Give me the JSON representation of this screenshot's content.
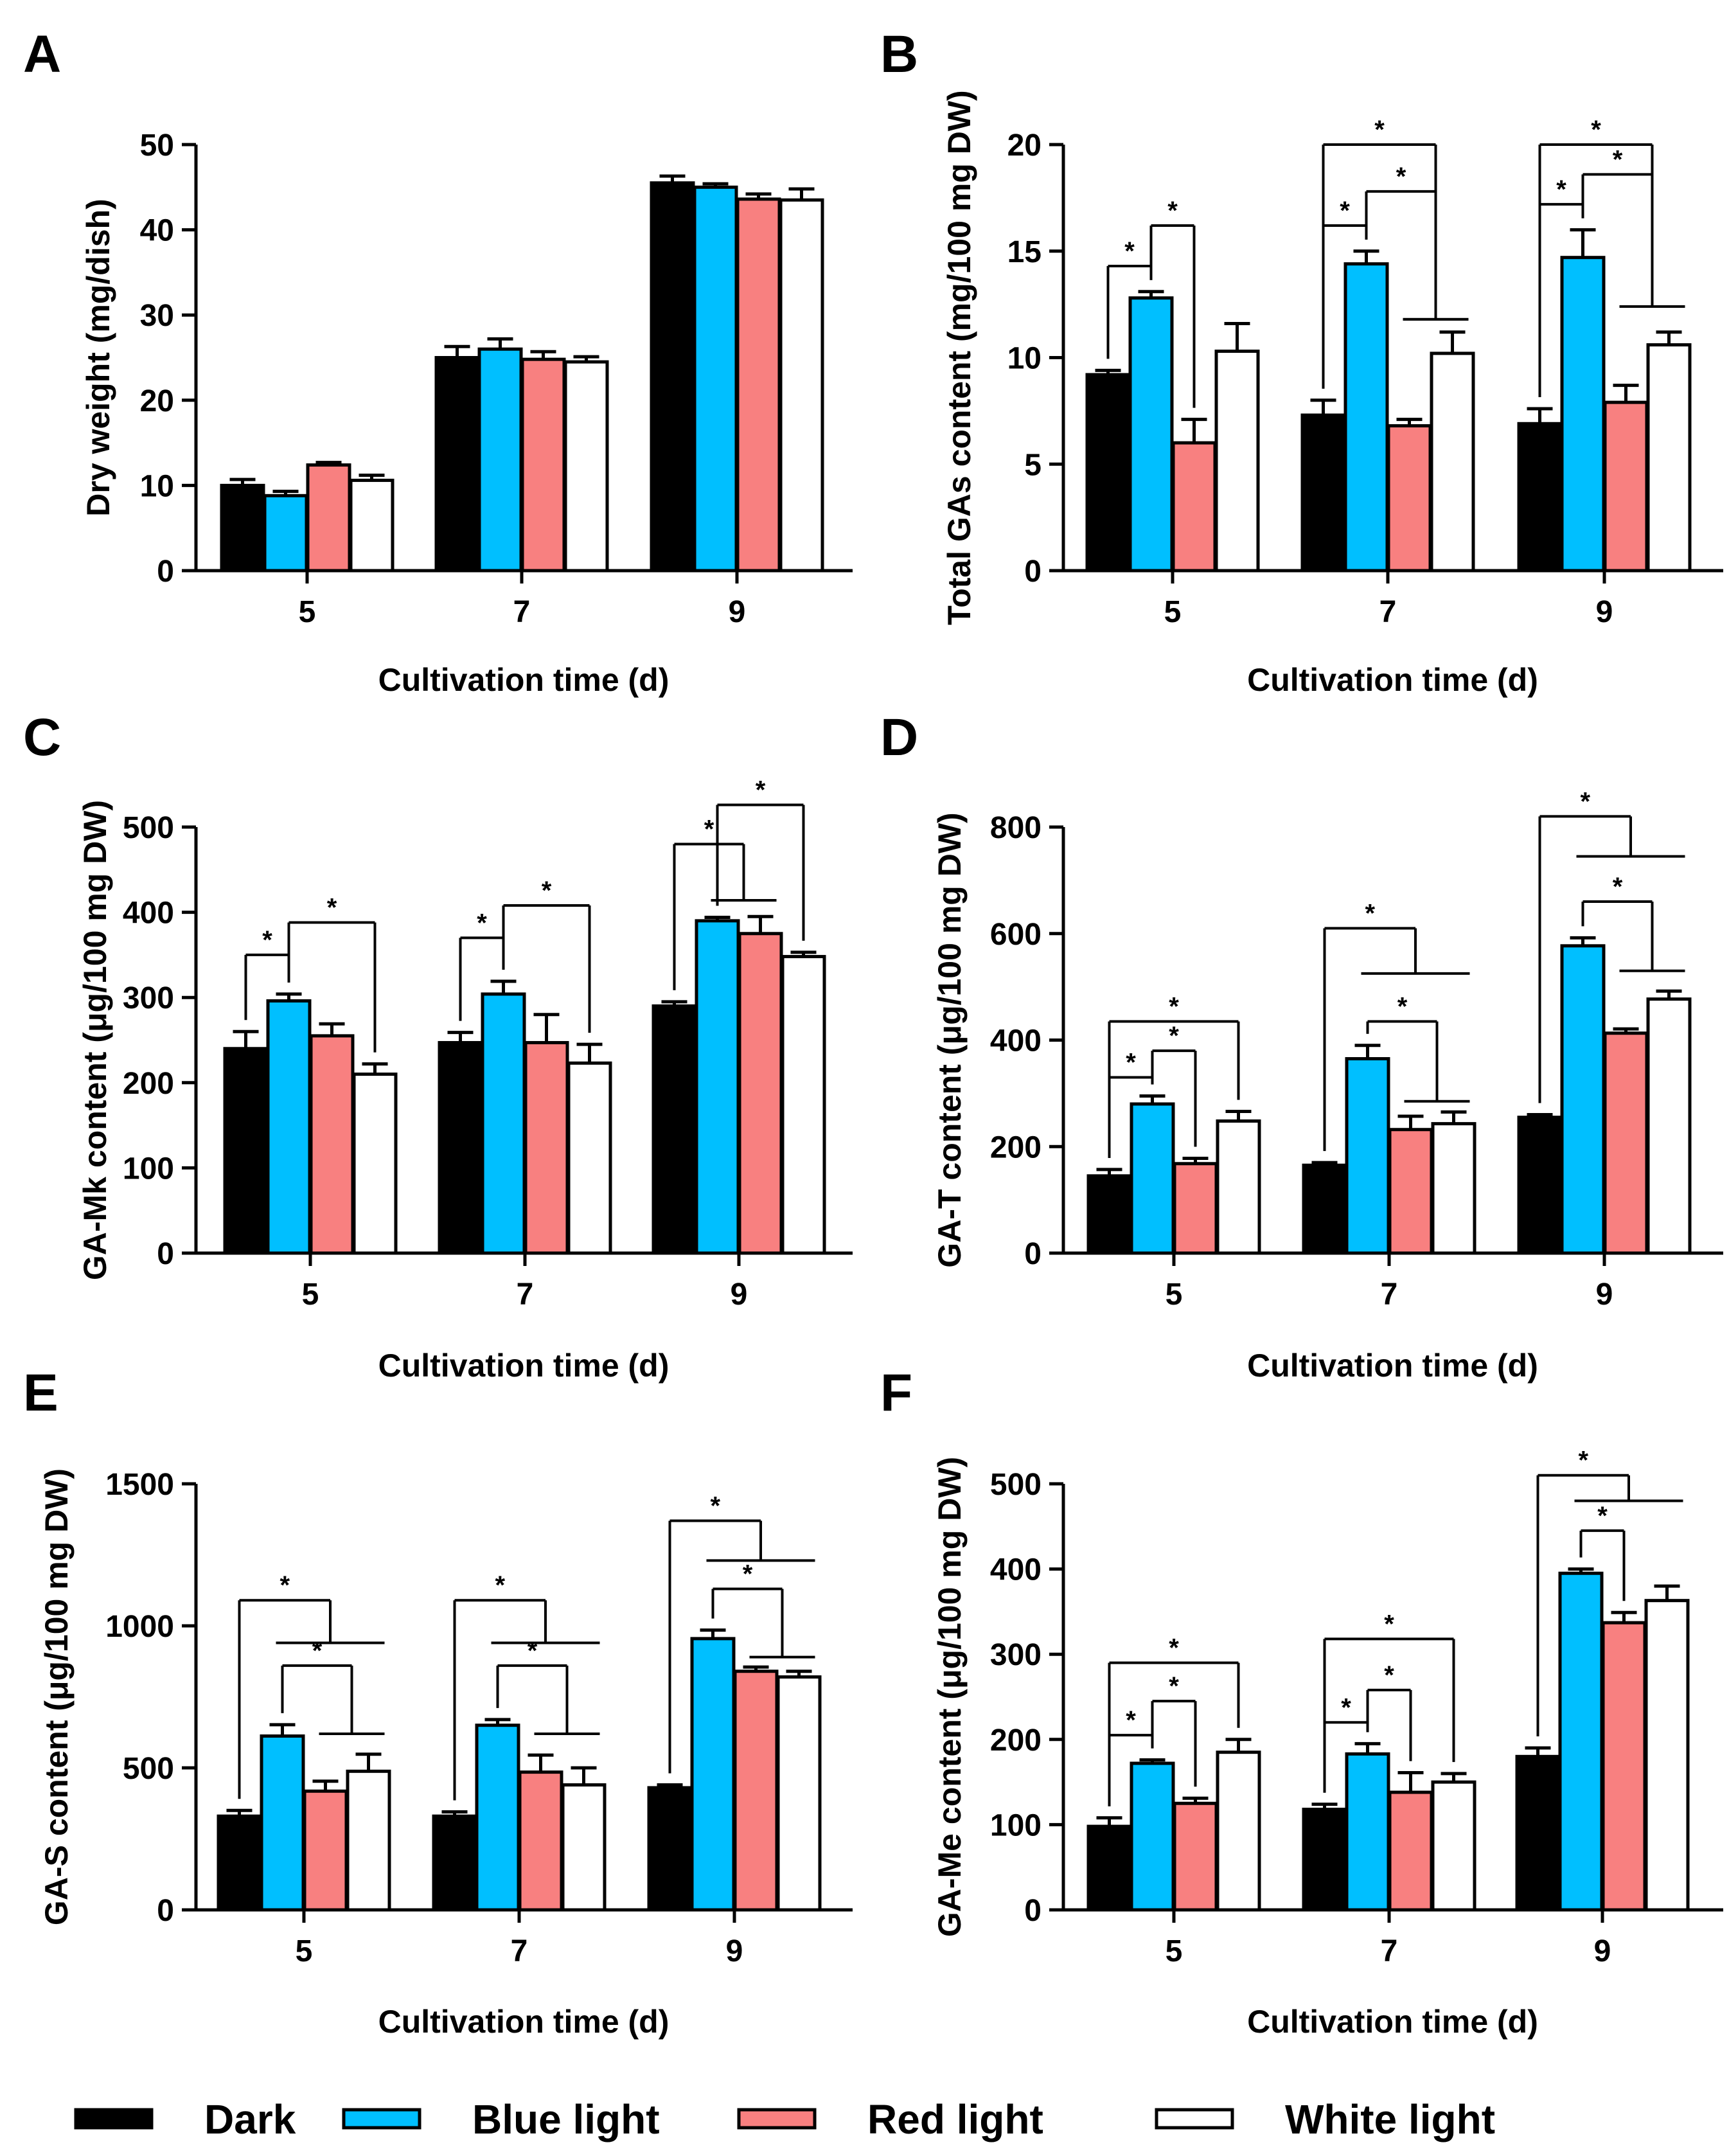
{
  "legend": {
    "colors": {
      "Dark": "#000000",
      "Blue light": "#00BFFF",
      "Red light": "#F88080",
      "White light": "#FFFFFF"
    },
    "items": [
      {
        "label": "Dark",
        "color": "#000000"
      },
      {
        "label": "Blue light",
        "color": "#00BFFF"
      },
      {
        "label": "Red light",
        "color": "#F88080"
      },
      {
        "label": "White light",
        "color": "#FFFFFF"
      }
    ]
  },
  "chart_data": [
    {
      "panel": "A",
      "type": "bar",
      "xlabel": "Cultivation time (d)",
      "ylabel": "Dry weight (mg/dish)",
      "categories": [
        "5",
        "7",
        "9"
      ],
      "ylim": [
        0,
        50
      ],
      "yticks": [
        0,
        10,
        20,
        30,
        40,
        50
      ],
      "series": [
        {
          "name": "Dark",
          "values": [
            10,
            25,
            45.5
          ],
          "errors": [
            0.7,
            1.3,
            0.8
          ]
        },
        {
          "name": "Blue light",
          "values": [
            8.8,
            26,
            45
          ],
          "errors": [
            0.5,
            1.2,
            0.4
          ]
        },
        {
          "name": "Red light",
          "values": [
            12.4,
            24.8,
            43.6
          ],
          "errors": [
            0.3,
            0.9,
            0.6
          ]
        },
        {
          "name": "White light",
          "values": [
            10.6,
            24.5,
            43.5
          ],
          "errors": [
            0.6,
            0.6,
            1.3
          ]
        }
      ],
      "annotations": []
    },
    {
      "panel": "B",
      "type": "bar",
      "xlabel": "Cultivation time (d)",
      "ylabel": "Total GAs content (mg/100 mg DW)",
      "categories": [
        "5",
        "7",
        "9"
      ],
      "ylim": [
        0,
        20
      ],
      "yticks": [
        0,
        5,
        10,
        15,
        20
      ],
      "series": [
        {
          "name": "Dark",
          "values": [
            9.2,
            7.3,
            6.9
          ],
          "errors": [
            0.2,
            0.7,
            0.7
          ]
        },
        {
          "name": "Blue light",
          "values": [
            12.8,
            14.4,
            14.7
          ],
          "errors": [
            0.3,
            0.6,
            1.3
          ]
        },
        {
          "name": "Red light",
          "values": [
            6,
            6.8,
            7.9
          ],
          "errors": [
            1.1,
            0.3,
            0.8
          ]
        },
        {
          "name": "White light",
          "values": [
            10.3,
            10.2,
            10.6
          ],
          "errors": [
            1.3,
            1.0,
            0.6
          ]
        }
      ],
      "annotations": [
        {
          "group": 0,
          "kind": "pair",
          "from": 0,
          "to": 1,
          "y": 14.3,
          "label": "*"
        },
        {
          "group": 0,
          "kind": "pair",
          "from": 1,
          "to": 2,
          "y": 16.2,
          "label": "*"
        },
        {
          "group": 1,
          "kind": "pair",
          "from": 0,
          "to": 1,
          "y": 16.2,
          "label": "*"
        },
        {
          "group": 1,
          "kind": "multi",
          "from": 1,
          "to": [
            2,
            3
          ],
          "y": 17.8,
          "join": 11.8,
          "label": "*"
        },
        {
          "group": 1,
          "kind": "multi",
          "from": 0,
          "to": [
            2,
            3
          ],
          "y": 20.0,
          "join": 11.8,
          "label": "*"
        },
        {
          "group": 2,
          "kind": "pair",
          "from": 0,
          "to": 1,
          "y": 17.2,
          "label": "*"
        },
        {
          "group": 2,
          "kind": "multi",
          "from": 1,
          "to": [
            2,
            3
          ],
          "y": 18.6,
          "join": 12.4,
          "label": "*"
        },
        {
          "group": 2,
          "kind": "multi",
          "from": 0,
          "to": [
            2,
            3
          ],
          "y": 20.0,
          "join": 12.4,
          "label": "*"
        }
      ]
    },
    {
      "panel": "C",
      "type": "bar",
      "xlabel": "Cultivation time (d)",
      "ylabel": "GA-Mk content (μg/100 mg DW)",
      "categories": [
        "5",
        "7",
        "9"
      ],
      "ylim": [
        0,
        500
      ],
      "yticks": [
        0,
        100,
        200,
        300,
        400,
        500
      ],
      "series": [
        {
          "name": "Dark",
          "values": [
            240,
            247,
            290
          ],
          "errors": [
            20,
            12,
            5
          ]
        },
        {
          "name": "Blue light",
          "values": [
            296,
            304,
            390
          ],
          "errors": [
            8,
            15,
            4
          ]
        },
        {
          "name": "Red light",
          "values": [
            255,
            247,
            375
          ],
          "errors": [
            14,
            33,
            20
          ]
        },
        {
          "name": "White light",
          "values": [
            210,
            223,
            348
          ],
          "errors": [
            12,
            22,
            5
          ]
        }
      ],
      "annotations": [
        {
          "group": 0,
          "kind": "pair",
          "from": 0,
          "to": 1,
          "y": 350,
          "label": "*"
        },
        {
          "group": 0,
          "kind": "pair",
          "from": 1,
          "to": 3,
          "y": 388,
          "label": "*"
        },
        {
          "group": 1,
          "kind": "pair",
          "from": 0,
          "to": 1,
          "y": 370,
          "label": "*"
        },
        {
          "group": 1,
          "kind": "pair",
          "from": 1,
          "to": 3,
          "y": 408,
          "label": "*"
        },
        {
          "group": 2,
          "kind": "multi",
          "from": 0,
          "to": [
            1,
            2
          ],
          "y": 480,
          "join": 414,
          "label": "*"
        },
        {
          "group": 2,
          "kind": "pair",
          "from": 1,
          "to": 3,
          "y": 526,
          "label": "*"
        }
      ]
    },
    {
      "panel": "D",
      "type": "bar",
      "xlabel": "Cultivation time (d)",
      "ylabel": "GA-T content (μg/100 mg DW)",
      "categories": [
        "5",
        "7",
        "9"
      ],
      "ylim": [
        0,
        800
      ],
      "yticks": [
        0,
        200,
        400,
        600,
        800
      ],
      "series": [
        {
          "name": "Dark",
          "values": [
            145,
            165,
            255
          ],
          "errors": [
            12,
            5,
            5
          ]
        },
        {
          "name": "Blue light",
          "values": [
            280,
            365,
            577
          ],
          "errors": [
            15,
            25,
            15
          ]
        },
        {
          "name": "Red light",
          "values": [
            168,
            232,
            413
          ],
          "errors": [
            10,
            25,
            8
          ]
        },
        {
          "name": "White light",
          "values": [
            248,
            243,
            477
          ],
          "errors": [
            18,
            22,
            15
          ]
        }
      ],
      "annotations": [
        {
          "group": 0,
          "kind": "pair",
          "from": 0,
          "to": 1,
          "y": 330,
          "label": "*"
        },
        {
          "group": 0,
          "kind": "pair",
          "from": 1,
          "to": 2,
          "y": 380,
          "label": "*"
        },
        {
          "group": 0,
          "kind": "pair",
          "from": 0,
          "to": 3,
          "y": 435,
          "label": "*"
        },
        {
          "group": 1,
          "kind": "multi",
          "from": 1,
          "to": [
            2,
            3
          ],
          "y": 435,
          "join": 285,
          "label": "*"
        },
        {
          "group": 1,
          "kind": "multi",
          "from": 0,
          "to": [
            1,
            3
          ],
          "y": 610,
          "join": 525,
          "label": "*"
        },
        {
          "group": 2,
          "kind": "multi",
          "from": 1,
          "to": [
            2,
            3
          ],
          "y": 660,
          "join": 530,
          "label": "*"
        },
        {
          "group": 2,
          "kind": "multi",
          "from": 0,
          "to": [
            1,
            3
          ],
          "y": 820,
          "join": 745,
          "label": "*"
        }
      ]
    },
    {
      "panel": "E",
      "type": "bar",
      "xlabel": "Cultivation time (d)",
      "ylabel": "GA-S content (μg/100 mg DW)",
      "categories": [
        "5",
        "7",
        "9"
      ],
      "ylim": [
        0,
        1500
      ],
      "yticks": [
        0,
        500,
        1000,
        1500
      ],
      "series": [
        {
          "name": "Dark",
          "values": [
            330,
            330,
            430
          ],
          "errors": [
            20,
            15,
            10
          ]
        },
        {
          "name": "Blue light",
          "values": [
            612,
            650,
            955
          ],
          "errors": [
            40,
            20,
            30
          ]
        },
        {
          "name": "Red light",
          "values": [
            418,
            485,
            840
          ],
          "errors": [
            35,
            60,
            15
          ]
        },
        {
          "name": "White light",
          "values": [
            488,
            440,
            820
          ],
          "errors": [
            60,
            60,
            20
          ]
        }
      ],
      "annotations": [
        {
          "group": 0,
          "kind": "multi",
          "from": 1,
          "to": [
            2,
            3
          ],
          "y": 860,
          "join": 620,
          "label": "*"
        },
        {
          "group": 0,
          "kind": "multi",
          "from": 0,
          "to": [
            1,
            3
          ],
          "y": 1090,
          "join": 940,
          "label": "*"
        },
        {
          "group": 1,
          "kind": "multi",
          "from": 1,
          "to": [
            2,
            3
          ],
          "y": 860,
          "join": 620,
          "label": "*"
        },
        {
          "group": 1,
          "kind": "multi",
          "from": 0,
          "to": [
            1,
            3
          ],
          "y": 1090,
          "join": 940,
          "label": "*"
        },
        {
          "group": 2,
          "kind": "multi",
          "from": 1,
          "to": [
            2,
            3
          ],
          "y": 1130,
          "join": 890,
          "label": "*"
        },
        {
          "group": 2,
          "kind": "multi",
          "from": 0,
          "to": [
            1,
            3
          ],
          "y": 1370,
          "join": 1230,
          "label": "*"
        }
      ]
    },
    {
      "panel": "F",
      "type": "bar",
      "xlabel": "Cultivation time (d)",
      "ylabel": "GA-Me content (μg/100 mg DW)",
      "categories": [
        "5",
        "7",
        "9"
      ],
      "ylim": [
        0,
        500
      ],
      "yticks": [
        0,
        100,
        200,
        300,
        400,
        500
      ],
      "series": [
        {
          "name": "Dark",
          "values": [
            98,
            118,
            180
          ],
          "errors": [
            10,
            6,
            10
          ]
        },
        {
          "name": "Blue light",
          "values": [
            172,
            183,
            395
          ],
          "errors": [
            4,
            12,
            5
          ]
        },
        {
          "name": "Red light",
          "values": [
            125,
            138,
            337
          ],
          "errors": [
            6,
            23,
            12
          ]
        },
        {
          "name": "White light",
          "values": [
            185,
            150,
            363
          ],
          "errors": [
            15,
            10,
            17
          ]
        }
      ],
      "annotations": [
        {
          "group": 0,
          "kind": "pair",
          "from": 0,
          "to": 1,
          "y": 205,
          "label": "*"
        },
        {
          "group": 0,
          "kind": "pair",
          "from": 1,
          "to": 2,
          "y": 245,
          "label": "*"
        },
        {
          "group": 0,
          "kind": "pair",
          "from": 0,
          "to": 3,
          "y": 290,
          "label": "*"
        },
        {
          "group": 1,
          "kind": "pair",
          "from": 0,
          "to": 1,
          "y": 220,
          "label": "*"
        },
        {
          "group": 1,
          "kind": "pair",
          "from": 1,
          "to": 2,
          "y": 258,
          "label": "*"
        },
        {
          "group": 1,
          "kind": "pair",
          "from": 0,
          "to": 3,
          "y": 318,
          "label": "*"
        },
        {
          "group": 2,
          "kind": "pair",
          "from": 1,
          "to": 2,
          "y": 445,
          "label": "*"
        },
        {
          "group": 2,
          "kind": "multi",
          "from": 0,
          "to": [
            1,
            3
          ],
          "y": 510,
          "join": 480,
          "label": "*"
        }
      ]
    }
  ]
}
